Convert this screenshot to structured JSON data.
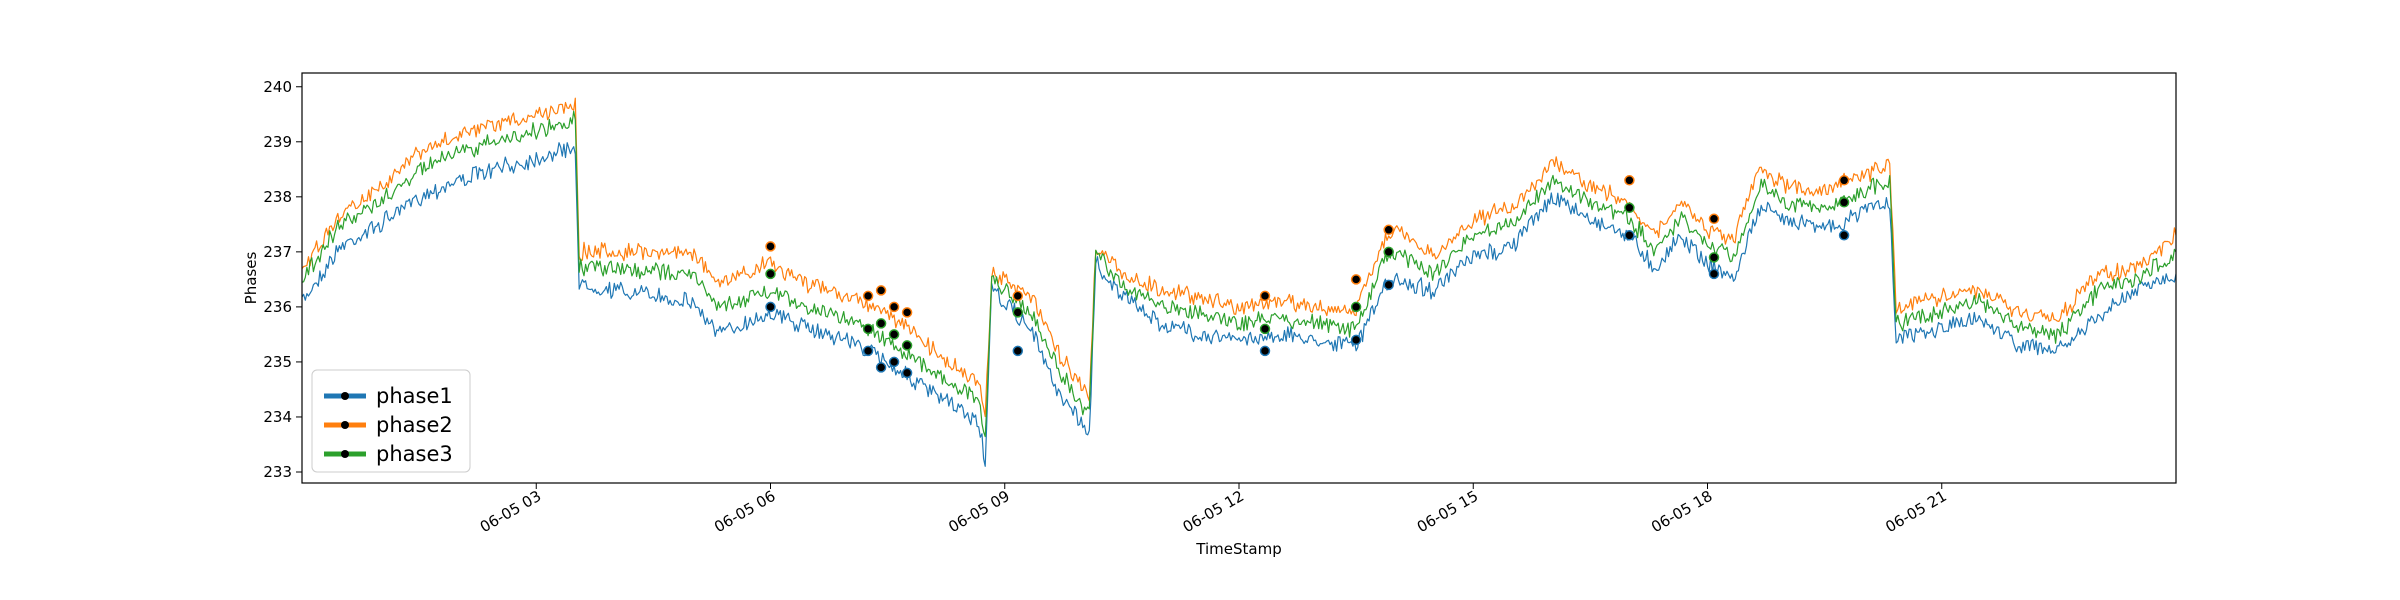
{
  "chart_data": {
    "type": "line",
    "title": "",
    "xlabel": "TimeStamp",
    "ylabel": "Phases",
    "xlim": [
      "2023-06-05T00:00",
      "2023-06-06T00:00"
    ],
    "ylim": [
      232.8,
      240.25
    ],
    "yticks": [
      233,
      234,
      235,
      236,
      237,
      238,
      239,
      240
    ],
    "xticks": [
      {
        "t": "2023-06-05T03:00",
        "label": "06-05 03"
      },
      {
        "t": "2023-06-05T06:00",
        "label": "06-05 06"
      },
      {
        "t": "2023-06-05T09:00",
        "label": "06-05 09"
      },
      {
        "t": "2023-06-05T12:00",
        "label": "06-05 12"
      },
      {
        "t": "2023-06-05T15:00",
        "label": "06-05 15"
      },
      {
        "t": "2023-06-05T18:00",
        "label": "06-05 18"
      },
      {
        "t": "2023-06-05T21:00",
        "label": "06-05 21"
      }
    ],
    "grid": false,
    "legend": {
      "position": "lower-left"
    },
    "series": [
      {
        "name": "phase1",
        "color": "#1f77b4",
        "points": [
          [
            "2023-06-05T00:00",
            236.1
          ],
          [
            "2023-06-05T00:30",
            237.1
          ],
          [
            "2023-06-05T01:00",
            237.5
          ],
          [
            "2023-06-05T01:30",
            238.0
          ],
          [
            "2023-06-05T02:00",
            238.3
          ],
          [
            "2023-06-05T02:30",
            238.5
          ],
          [
            "2023-06-05T03:00",
            238.7
          ],
          [
            "2023-06-05T03:30",
            238.9
          ],
          [
            "2023-06-05T03:33",
            236.4
          ],
          [
            "2023-06-05T04:00",
            236.3
          ],
          [
            "2023-06-05T05:00",
            236.1
          ],
          [
            "2023-06-05T05:20",
            235.5
          ],
          [
            "2023-06-05T06:00",
            235.9
          ],
          [
            "2023-06-05T06:30",
            235.6
          ],
          [
            "2023-06-05T07:00",
            235.4
          ],
          [
            "2023-06-05T07:30",
            235.0
          ],
          [
            "2023-06-05T08:00",
            234.5
          ],
          [
            "2023-06-05T08:40",
            233.9
          ],
          [
            "2023-06-05T08:45",
            233.2
          ],
          [
            "2023-06-05T08:50",
            236.3
          ],
          [
            "2023-06-05T09:20",
            235.6
          ],
          [
            "2023-06-05T09:40",
            234.5
          ],
          [
            "2023-06-05T10:05",
            233.7
          ],
          [
            "2023-06-05T10:10",
            236.8
          ],
          [
            "2023-06-05T10:30",
            236.2
          ],
          [
            "2023-06-05T11:00",
            235.7
          ],
          [
            "2023-06-05T11:30",
            235.5
          ],
          [
            "2023-06-05T12:00",
            235.4
          ],
          [
            "2023-06-05T12:30",
            235.5
          ],
          [
            "2023-06-05T13:00",
            235.4
          ],
          [
            "2023-06-05T13:30",
            235.3
          ],
          [
            "2023-06-05T13:50",
            236.3
          ],
          [
            "2023-06-05T14:00",
            236.5
          ],
          [
            "2023-06-05T14:30",
            236.3
          ],
          [
            "2023-06-05T15:00",
            236.9
          ],
          [
            "2023-06-05T15:30",
            237.1
          ],
          [
            "2023-06-05T16:00",
            238.0
          ],
          [
            "2023-06-05T16:30",
            237.6
          ],
          [
            "2023-06-05T17:00",
            237.3
          ],
          [
            "2023-06-05T17:20",
            236.7
          ],
          [
            "2023-06-05T17:40",
            237.3
          ],
          [
            "2023-06-05T18:00",
            236.8
          ],
          [
            "2023-06-05T18:20",
            236.5
          ],
          [
            "2023-06-05T18:40",
            237.8
          ],
          [
            "2023-06-05T19:00",
            237.6
          ],
          [
            "2023-06-05T19:30",
            237.5
          ],
          [
            "2023-06-05T19:40",
            237.4
          ],
          [
            "2023-06-05T20:00",
            237.8
          ],
          [
            "2023-06-05T20:20",
            237.9
          ],
          [
            "2023-06-05T20:25",
            235.4
          ],
          [
            "2023-06-05T21:00",
            235.6
          ],
          [
            "2023-06-05T21:30",
            235.8
          ],
          [
            "2023-06-05T22:00",
            235.3
          ],
          [
            "2023-06-05T22:30",
            235.2
          ],
          [
            "2023-06-05T23:00",
            235.8
          ],
          [
            "2023-06-05T23:30",
            236.3
          ],
          [
            "2023-06-06T00:00",
            236.6
          ]
        ]
      },
      {
        "name": "phase2",
        "color": "#ff7f0e",
        "points": [
          [
            "2023-06-05T00:00",
            236.7
          ],
          [
            "2023-06-05T00:30",
            237.7
          ],
          [
            "2023-06-05T01:00",
            238.2
          ],
          [
            "2023-06-05T01:30",
            238.8
          ],
          [
            "2023-06-05T02:00",
            239.1
          ],
          [
            "2023-06-05T02:30",
            239.3
          ],
          [
            "2023-06-05T03:00",
            239.5
          ],
          [
            "2023-06-05T03:30",
            239.7
          ],
          [
            "2023-06-05T03:33",
            237.0
          ],
          [
            "2023-06-05T04:00",
            237.0
          ],
          [
            "2023-06-05T05:00",
            237.0
          ],
          [
            "2023-06-05T05:20",
            236.4
          ],
          [
            "2023-06-05T06:00",
            236.8
          ],
          [
            "2023-06-05T06:30",
            236.4
          ],
          [
            "2023-06-05T07:00",
            236.2
          ],
          [
            "2023-06-05T07:30",
            235.9
          ],
          [
            "2023-06-05T08:00",
            235.3
          ],
          [
            "2023-06-05T08:40",
            234.6
          ],
          [
            "2023-06-05T08:45",
            234.0
          ],
          [
            "2023-06-05T08:50",
            236.6
          ],
          [
            "2023-06-05T09:20",
            236.2
          ],
          [
            "2023-06-05T09:40",
            235.2
          ],
          [
            "2023-06-05T10:05",
            234.4
          ],
          [
            "2023-06-05T10:10",
            237.1
          ],
          [
            "2023-06-05T10:30",
            236.6
          ],
          [
            "2023-06-05T11:00",
            236.3
          ],
          [
            "2023-06-05T11:30",
            236.2
          ],
          [
            "2023-06-05T12:00",
            236.0
          ],
          [
            "2023-06-05T12:30",
            236.1
          ],
          [
            "2023-06-05T13:00",
            236.0
          ],
          [
            "2023-06-05T13:30",
            235.9
          ],
          [
            "2023-06-05T13:50",
            237.2
          ],
          [
            "2023-06-05T14:00",
            237.4
          ],
          [
            "2023-06-05T14:30",
            236.9
          ],
          [
            "2023-06-05T15:00",
            237.6
          ],
          [
            "2023-06-05T15:30",
            237.8
          ],
          [
            "2023-06-05T16:00",
            238.6
          ],
          [
            "2023-06-05T16:30",
            238.2
          ],
          [
            "2023-06-05T17:00",
            237.9
          ],
          [
            "2023-06-05T17:20",
            237.3
          ],
          [
            "2023-06-05T17:40",
            237.9
          ],
          [
            "2023-06-05T18:00",
            237.4
          ],
          [
            "2023-06-05T18:20",
            237.2
          ],
          [
            "2023-06-05T18:40",
            238.5
          ],
          [
            "2023-06-05T19:00",
            238.2
          ],
          [
            "2023-06-05T19:30",
            238.1
          ],
          [
            "2023-06-05T19:40",
            238.3
          ],
          [
            "2023-06-05T20:00",
            238.4
          ],
          [
            "2023-06-05T20:20",
            238.6
          ],
          [
            "2023-06-05T20:25",
            236.0
          ],
          [
            "2023-06-05T21:00",
            236.2
          ],
          [
            "2023-06-05T21:30",
            236.3
          ],
          [
            "2023-06-05T22:00",
            235.9
          ],
          [
            "2023-06-05T22:30",
            235.8
          ],
          [
            "2023-06-05T23:00",
            236.6
          ],
          [
            "2023-06-05T23:30",
            236.7
          ],
          [
            "2023-06-06T00:00",
            237.3
          ]
        ]
      },
      {
        "name": "phase3",
        "color": "#2ca02c",
        "points": [
          [
            "2023-06-05T00:00",
            236.5
          ],
          [
            "2023-06-05T00:30",
            237.5
          ],
          [
            "2023-06-05T01:00",
            237.9
          ],
          [
            "2023-06-05T01:30",
            238.5
          ],
          [
            "2023-06-05T02:00",
            238.8
          ],
          [
            "2023-06-05T02:30",
            239.0
          ],
          [
            "2023-06-05T03:00",
            239.2
          ],
          [
            "2023-06-05T03:30",
            239.4
          ],
          [
            "2023-06-05T03:33",
            236.7
          ],
          [
            "2023-06-05T04:00",
            236.7
          ],
          [
            "2023-06-05T05:00",
            236.6
          ],
          [
            "2023-06-05T05:20",
            236.0
          ],
          [
            "2023-06-05T06:00",
            236.3
          ],
          [
            "2023-06-05T06:30",
            236.0
          ],
          [
            "2023-06-05T07:00",
            235.8
          ],
          [
            "2023-06-05T07:30",
            235.4
          ],
          [
            "2023-06-05T08:00",
            234.9
          ],
          [
            "2023-06-05T08:40",
            234.3
          ],
          [
            "2023-06-05T08:45",
            233.6
          ],
          [
            "2023-06-05T08:50",
            236.5
          ],
          [
            "2023-06-05T09:20",
            235.9
          ],
          [
            "2023-06-05T09:40",
            234.9
          ],
          [
            "2023-06-05T10:05",
            234.0
          ],
          [
            "2023-06-05T10:10",
            237.0
          ],
          [
            "2023-06-05T10:30",
            236.4
          ],
          [
            "2023-06-05T11:00",
            236.0
          ],
          [
            "2023-06-05T11:30",
            235.9
          ],
          [
            "2023-06-05T12:00",
            235.7
          ],
          [
            "2023-06-05T12:30",
            235.8
          ],
          [
            "2023-06-05T13:00",
            235.7
          ],
          [
            "2023-06-05T13:30",
            235.6
          ],
          [
            "2023-06-05T13:50",
            236.8
          ],
          [
            "2023-06-05T14:00",
            237.0
          ],
          [
            "2023-06-05T14:30",
            236.6
          ],
          [
            "2023-06-05T15:00",
            237.3
          ],
          [
            "2023-06-05T15:30",
            237.5
          ],
          [
            "2023-06-05T16:00",
            238.3
          ],
          [
            "2023-06-05T16:30",
            237.9
          ],
          [
            "2023-06-05T17:00",
            237.6
          ],
          [
            "2023-06-05T17:20",
            237.0
          ],
          [
            "2023-06-05T17:40",
            237.6
          ],
          [
            "2023-06-05T18:00",
            237.1
          ],
          [
            "2023-06-05T18:20",
            236.9
          ],
          [
            "2023-06-05T18:40",
            238.2
          ],
          [
            "2023-06-05T19:00",
            237.9
          ],
          [
            "2023-06-05T19:30",
            237.8
          ],
          [
            "2023-06-05T19:40",
            237.9
          ],
          [
            "2023-06-05T20:00",
            238.1
          ],
          [
            "2023-06-05T20:20",
            238.3
          ],
          [
            "2023-06-05T20:25",
            235.7
          ],
          [
            "2023-06-05T21:00",
            235.9
          ],
          [
            "2023-06-05T21:30",
            236.1
          ],
          [
            "2023-06-05T22:00",
            235.6
          ],
          [
            "2023-06-05T22:30",
            235.5
          ],
          [
            "2023-06-05T23:00",
            236.3
          ],
          [
            "2023-06-05T23:30",
            236.5
          ],
          [
            "2023-06-06T00:00",
            237.0
          ]
        ]
      }
    ],
    "markers": {
      "phase1": [
        [
          "2023-06-05T06:00",
          236.0
        ],
        [
          "2023-06-05T07:15",
          235.2
        ],
        [
          "2023-06-05T07:25",
          234.9
        ],
        [
          "2023-06-05T07:35",
          235.0
        ],
        [
          "2023-06-05T07:45",
          234.8
        ],
        [
          "2023-06-05T09:10",
          235.2
        ],
        [
          "2023-06-05T12:20",
          235.2
        ],
        [
          "2023-06-05T13:30",
          235.4
        ],
        [
          "2023-06-05T13:55",
          236.4
        ],
        [
          "2023-06-05T17:00",
          237.3
        ],
        [
          "2023-06-05T18:05",
          236.6
        ],
        [
          "2023-06-05T19:45",
          237.3
        ]
      ],
      "phase2": [
        [
          "2023-06-05T06:00",
          237.1
        ],
        [
          "2023-06-05T07:15",
          236.2
        ],
        [
          "2023-06-05T07:25",
          236.3
        ],
        [
          "2023-06-05T07:35",
          236.0
        ],
        [
          "2023-06-05T07:45",
          235.9
        ],
        [
          "2023-06-05T09:10",
          236.2
        ],
        [
          "2023-06-05T12:20",
          236.2
        ],
        [
          "2023-06-05T13:30",
          236.5
        ],
        [
          "2023-06-05T13:55",
          237.4
        ],
        [
          "2023-06-05T17:00",
          238.3
        ],
        [
          "2023-06-05T18:05",
          237.6
        ],
        [
          "2023-06-05T19:45",
          238.3
        ]
      ],
      "phase3": [
        [
          "2023-06-05T06:00",
          236.6
        ],
        [
          "2023-06-05T07:15",
          235.6
        ],
        [
          "2023-06-05T07:25",
          235.7
        ],
        [
          "2023-06-05T07:35",
          235.5
        ],
        [
          "2023-06-05T07:45",
          235.3
        ],
        [
          "2023-06-05T09:10",
          235.9
        ],
        [
          "2023-06-05T12:20",
          235.6
        ],
        [
          "2023-06-05T13:30",
          236.0
        ],
        [
          "2023-06-05T13:55",
          237.0
        ],
        [
          "2023-06-05T17:00",
          237.8
        ],
        [
          "2023-06-05T18:05",
          236.9
        ],
        [
          "2023-06-05T19:45",
          237.9
        ]
      ]
    }
  }
}
